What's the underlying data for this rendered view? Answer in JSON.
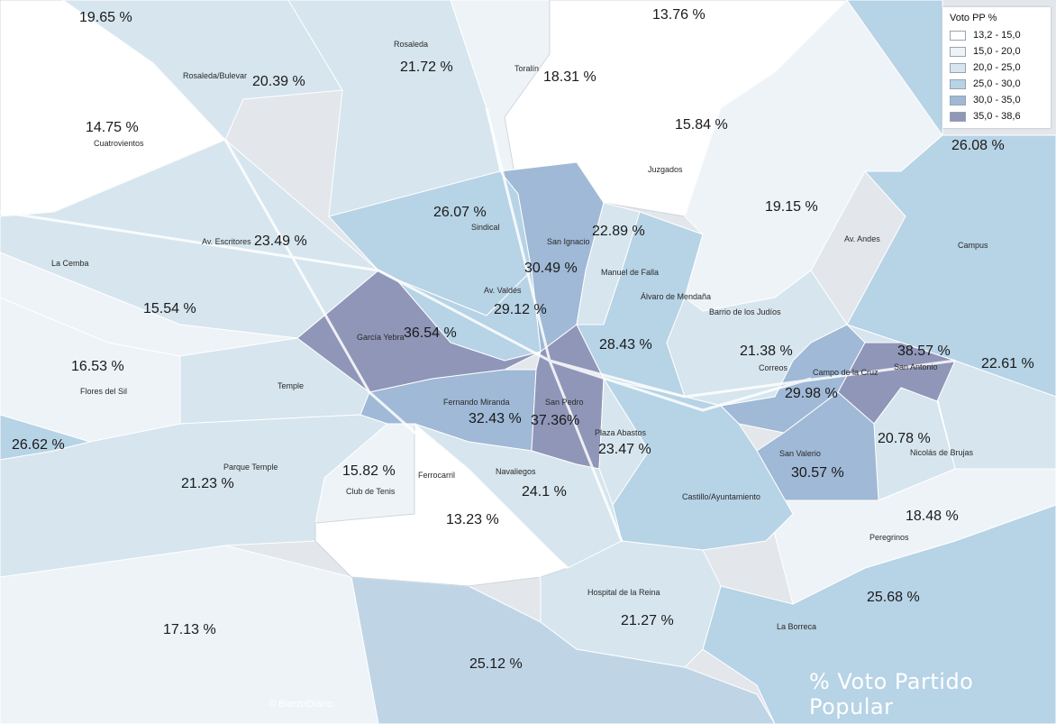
{
  "legend": {
    "title": "Voto PP %",
    "items": [
      {
        "label": "13,2 - 15,0",
        "color": "#ffffff"
      },
      {
        "label": "15,0 - 20,0",
        "color": "#eef3f8"
      },
      {
        "label": "20,0 - 25,0",
        "color": "#d6e5ee"
      },
      {
        "label": "25,0 - 30,0",
        "color": "#b7d3e6"
      },
      {
        "label": "30,0 - 35,0",
        "color": "#9fb9d6"
      },
      {
        "label": "35,0 - 38,6",
        "color": "#8f96b8"
      }
    ]
  },
  "title": "% Voto Partido Popular",
  "credit": "© BierzoDiario",
  "percentages": [
    "19.65 %",
    "13.76 %",
    "21.72 %",
    "20.39 %",
    "18.31 %",
    "14.75 %",
    "15.84 %",
    "26.08 %",
    "26.07 %",
    "19.15 %",
    "23.49 %",
    "22.89 %",
    "30.49 %",
    "29.12 %",
    "15.54 %",
    "36.54 %",
    "28.43 %",
    "21.38 %",
    "38.57 %",
    "22.61 %",
    "16.53 %",
    "29.98 %",
    "32.43 %",
    "37.36%",
    "23.47 %",
    "20.78 %",
    "26.62 %",
    "21.23 %",
    "15.82 %",
    "30.57 %",
    "24.1 %",
    "13.23 %",
    "18.48 %",
    "25.68 %",
    "21.27 %",
    "17.13 %",
    "25.12 %"
  ],
  "names": [
    "Rosaleda",
    "Toralín",
    "Rosaleda/Bulevar",
    "Cuatrovientos",
    "Juzgados",
    "Sindical",
    "San Ignacio",
    "Av. Andes",
    "Campus",
    "La Cemba",
    "Av. Escritores",
    "Manuel de Falla",
    "Av. Valdés",
    "Álvaro de Mendaña",
    "Barrio de los Judíos",
    "García Yebra",
    "Correos",
    "Campo de la Cruz",
    "San Antonio",
    "Flores del Sil",
    "Temple",
    "Fernando Miranda",
    "San Pedro",
    "Plaza Abastos",
    "Nicolás de Brujas",
    "Parque Temple",
    "Ferrocarril",
    "Club de Tenis",
    "Navaliegos",
    "San Valerio",
    "Castillo/Ayuntamiento",
    "Peregrinos",
    "Hospital de la Reina",
    "La Borreca"
  ]
}
